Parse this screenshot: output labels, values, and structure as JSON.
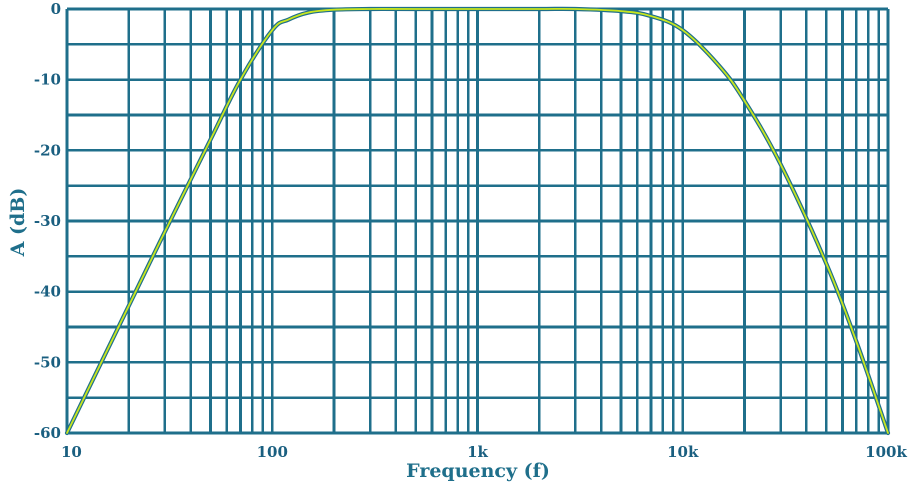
{
  "chart_data": {
    "type": "line",
    "title": "",
    "xlabel": "Frequency (f)",
    "ylabel": "A (dB)",
    "x_scale": "log",
    "xlim": [
      10,
      100000
    ],
    "ylim": [
      -60,
      0
    ],
    "grid": true,
    "x_ticks": [
      {
        "value": 10,
        "label": "10"
      },
      {
        "value": 100,
        "label": "100"
      },
      {
        "value": 1000,
        "label": "1k"
      },
      {
        "value": 10000,
        "label": "10k"
      },
      {
        "value": 100000,
        "label": "100k"
      }
    ],
    "y_ticks": [
      {
        "value": 0,
        "label": "0"
      },
      {
        "value": -10,
        "label": "-10"
      },
      {
        "value": -20,
        "label": "-20"
      },
      {
        "value": -30,
        "label": "-30"
      },
      {
        "value": -40,
        "label": "-40"
      },
      {
        "value": -50,
        "label": "-50"
      },
      {
        "value": -60,
        "label": "-60"
      }
    ],
    "series": [
      {
        "x": [
          10,
          20,
          30,
          50,
          70,
          100,
          120,
          150,
          200,
          300,
          500,
          1000,
          2000,
          3000,
          5000,
          7000,
          10000,
          15000,
          20000,
          30000,
          50000,
          70000,
          100000
        ],
        "y": [
          -60,
          -42,
          -31.5,
          -18.5,
          -10,
          -3,
          -1.5,
          -0.5,
          -0.1,
          0,
          0,
          0,
          0,
          0,
          -0.3,
          -1,
          -3,
          -8,
          -13,
          -22,
          -36,
          -47,
          -60
        ]
      }
    ],
    "colors": {
      "grid": "#1f6f8b",
      "curve": "#c8e61e",
      "curve_outline": "#1f6f8b",
      "labels": "#1a5f80"
    }
  }
}
